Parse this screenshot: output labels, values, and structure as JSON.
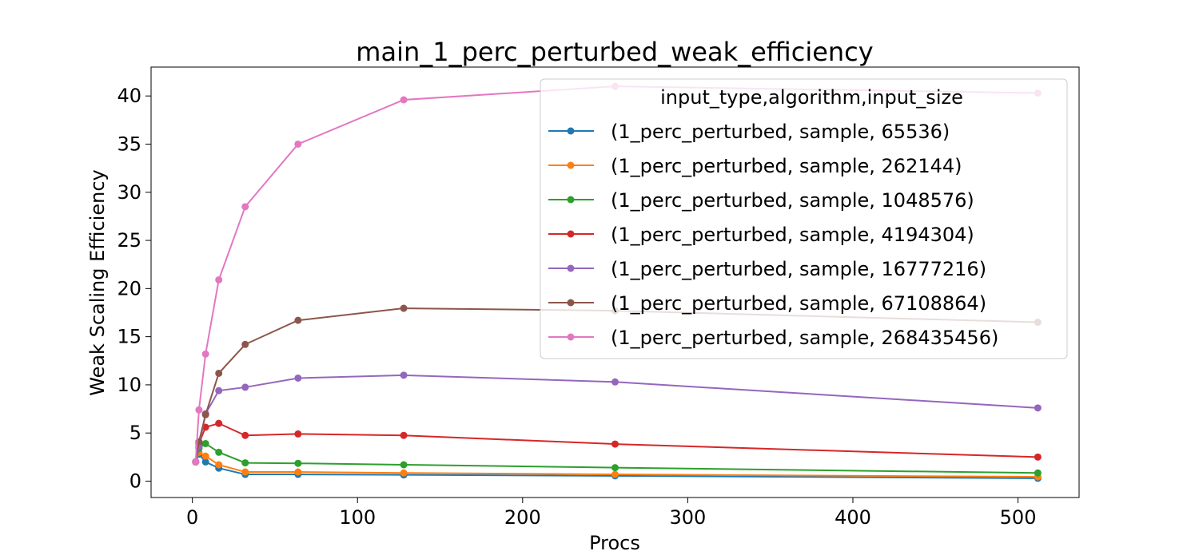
{
  "chart_data": {
    "type": "line",
    "title": "main_1_perc_perturbed_weak_efficiency",
    "xlabel": "Procs",
    "ylabel": "Weak Scaling Efficiency",
    "xlim": [
      -25,
      537
    ],
    "ylim": [
      -1.7,
      43
    ],
    "xticks": [
      0,
      100,
      200,
      300,
      400,
      500
    ],
    "yticks": [
      0,
      5,
      10,
      15,
      20,
      25,
      30,
      35,
      40
    ],
    "grid": false,
    "legend": {
      "title": "input_type,algorithm,input_size",
      "placement": "upper right"
    },
    "x": [
      2,
      4,
      8,
      16,
      32,
      64,
      128,
      256,
      512
    ],
    "series": [
      {
        "name": "(1_perc_perturbed, sample, 65536)",
        "color": "#1f77b4",
        "values": [
          2.0,
          2.8,
          2.0,
          1.35,
          0.7,
          0.7,
          0.65,
          0.55,
          0.3
        ]
      },
      {
        "name": "(1_perc_perturbed, sample, 262144)",
        "color": "#ff7f0e",
        "values": [
          2.0,
          3.0,
          2.6,
          1.7,
          0.95,
          0.95,
          0.85,
          0.7,
          0.45
        ]
      },
      {
        "name": "(1_perc_perturbed, sample, 1048576)",
        "color": "#2ca02c",
        "values": [
          2.0,
          3.4,
          3.9,
          3.0,
          1.9,
          1.85,
          1.7,
          1.4,
          0.85
        ]
      },
      {
        "name": "(1_perc_perturbed, sample, 4194304)",
        "color": "#d62728",
        "values": [
          2.0,
          3.9,
          5.6,
          6.0,
          4.75,
          4.9,
          4.75,
          3.85,
          2.5
        ]
      },
      {
        "name": "(1_perc_perturbed, sample, 16777216)",
        "color": "#9467bd",
        "values": [
          2.0,
          3.6,
          7.0,
          9.4,
          9.75,
          10.7,
          11.0,
          10.3,
          7.6
        ]
      },
      {
        "name": "(1_perc_perturbed, sample, 67108864)",
        "color": "#8c564b",
        "values": [
          2.0,
          4.1,
          6.9,
          11.2,
          14.2,
          16.7,
          17.95,
          17.7,
          16.5
        ]
      },
      {
        "name": "(1_perc_perturbed, sample, 268435456)",
        "color": "#e377c2",
        "values": [
          2.0,
          7.4,
          13.2,
          20.9,
          28.5,
          35.0,
          39.6,
          41.0,
          40.3
        ]
      }
    ]
  }
}
